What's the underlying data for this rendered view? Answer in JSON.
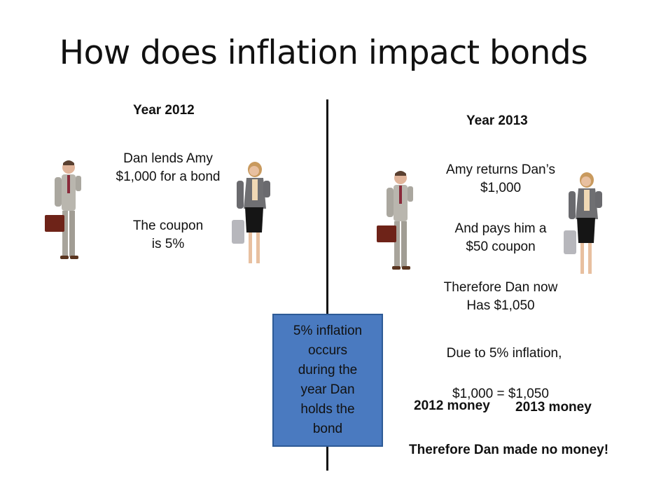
{
  "title": "How does inflation impact bonds",
  "left": {
    "year": "Year 2012",
    "line1": "Dan lends Amy",
    "line2": "$1,000 for a bond",
    "coupon1": "The coupon",
    "coupon2": "is 5%"
  },
  "right": {
    "year": "Year 2013",
    "return1": "Amy returns Dan’s",
    "return2": "$1,000",
    "pays1": "And pays him a",
    "pays2": "$50 coupon",
    "now1": "Therefore Dan now",
    "now2": "Has $1,050",
    "due": "Due to 5% inflation,",
    "equation": "$1,000 = $1,050",
    "money2012": "2012 money",
    "money2013": "2013 money",
    "conclusion": "Therefore Dan made no money!"
  },
  "center_box": "5% inflation\noccurs\nduring the\nyear Dan\nholds the\nbond"
}
